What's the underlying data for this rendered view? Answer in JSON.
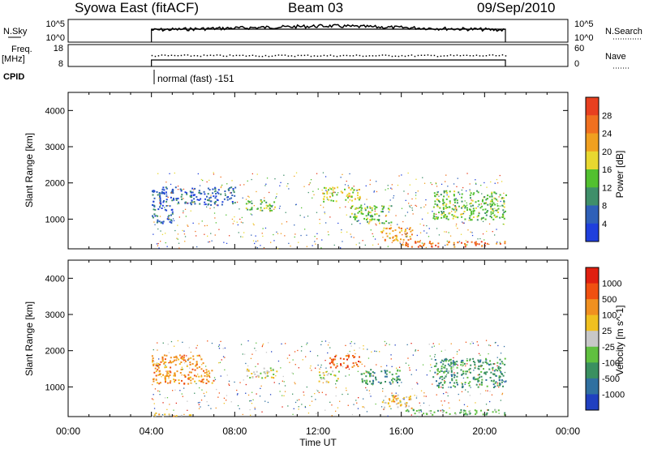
{
  "header": {
    "title": "Syowa East (fitACF)",
    "beam": "Beam 03",
    "date": "09/Sep/2010"
  },
  "top_panels": {
    "nsky_label": "N.Sky",
    "nsky_ticks": [
      "10^5",
      "10^0"
    ],
    "nsearch_label": "N.Search",
    "nsearch_ticks": [
      "10^5",
      "10^0"
    ],
    "freq_label": "Freq.",
    "freq_unit": "[MHz]",
    "freq_ticks": [
      "18",
      "8"
    ],
    "nave_label": "Nave",
    "nave_ticks": [
      "60",
      "0"
    ],
    "cpid_label": "CPID",
    "cpid_value": "normal (fast) -151"
  },
  "colors": {
    "power": [
      "#1f3fdd",
      "#2f60b8",
      "#3f8f6a",
      "#52c030",
      "#e8d830",
      "#f0a020",
      "#f07020",
      "#e84020"
    ],
    "velocity": [
      "#2040c0",
      "#3070a0",
      "#3a9060",
      "#60c040",
      "#c8c8c8",
      "#f0c020",
      "#f09020",
      "#f05010",
      "#e02010"
    ]
  },
  "power_colorbar": {
    "label": "Power [dB]",
    "ticks": [
      "28",
      "24",
      "20",
      "16",
      "12",
      "8",
      "4"
    ]
  },
  "velocity_colorbar": {
    "label": "Velocity [m s^-1]",
    "ticks": [
      "1000",
      "500",
      "100",
      "25",
      "-25",
      "-100",
      "-500",
      "-1000"
    ]
  },
  "chart_data": [
    {
      "type": "heatmap",
      "name": "power",
      "ylabel": "Slant Range [km]",
      "xlabel": "",
      "x_ticks": [
        "00:00",
        "04:00",
        "08:00",
        "12:00",
        "16:00",
        "20:00",
        "00:00"
      ],
      "y_ticks": [
        "1000",
        "2000",
        "3000",
        "4000"
      ],
      "xlim": [
        0,
        24
      ],
      "ylim": [
        180,
        4500
      ],
      "data_coverage_hours": [
        4.0,
        21.0
      ],
      "echo_regions": [
        {
          "t0": 4.0,
          "t1": 8.0,
          "r0": 1400,
          "r1": 1900,
          "level": 1
        },
        {
          "t0": 4.0,
          "t1": 5.0,
          "r0": 900,
          "r1": 1400,
          "level": 1
        },
        {
          "t0": 8.5,
          "t1": 10.0,
          "r0": 1250,
          "r1": 1550,
          "level": 3
        },
        {
          "t0": 12.2,
          "t1": 14.0,
          "r0": 1500,
          "r1": 1900,
          "level": 4
        },
        {
          "t0": 13.5,
          "t1": 15.5,
          "r0": 900,
          "r1": 1400,
          "level": 3
        },
        {
          "t0": 15.0,
          "t1": 16.5,
          "r0": 400,
          "r1": 800,
          "level": 5
        },
        {
          "t0": 16.0,
          "t1": 21.0,
          "r0": 250,
          "r1": 400,
          "level": 6
        },
        {
          "t0": 17.5,
          "t1": 21.0,
          "r0": 1000,
          "r1": 1800,
          "level": 3
        }
      ]
    },
    {
      "type": "heatmap",
      "name": "velocity",
      "ylabel": "Slant Range [km]",
      "xlabel": "Time UT",
      "x_ticks": [
        "00:00",
        "04:00",
        "08:00",
        "12:00",
        "16:00",
        "20:00",
        "00:00"
      ],
      "y_ticks": [
        "1000",
        "2000",
        "3000",
        "4000"
      ],
      "xlim": [
        0,
        24
      ],
      "ylim": [
        180,
        4500
      ],
      "data_coverage_hours": [
        4.0,
        21.0
      ],
      "echo_regions": [
        {
          "t0": 4.0,
          "t1": 6.5,
          "r0": 1500,
          "r1": 1900,
          "level": 6
        },
        {
          "t0": 4.0,
          "t1": 7.0,
          "r0": 1100,
          "r1": 1500,
          "level": 6
        },
        {
          "t0": 8.5,
          "t1": 10.0,
          "r0": 1250,
          "r1": 1550,
          "level": 4
        },
        {
          "t0": 12.5,
          "t1": 14.0,
          "r0": 1550,
          "r1": 1900,
          "level": 7
        },
        {
          "t0": 12.0,
          "t1": 13.0,
          "r0": 1150,
          "r1": 1450,
          "level": 4
        },
        {
          "t0": 14.0,
          "t1": 16.0,
          "r0": 1100,
          "r1": 1500,
          "level": 2
        },
        {
          "t0": 15.0,
          "t1": 16.5,
          "r0": 400,
          "r1": 800,
          "level": 5
        },
        {
          "t0": 16.0,
          "t1": 21.0,
          "r0": 250,
          "r1": 400,
          "level": 3
        },
        {
          "t0": 17.5,
          "t1": 21.0,
          "r0": 1000,
          "r1": 1800,
          "level": 2
        },
        {
          "t0": 4.0,
          "t1": 6.0,
          "r0": 200,
          "r1": 300,
          "level": 5
        }
      ]
    }
  ]
}
